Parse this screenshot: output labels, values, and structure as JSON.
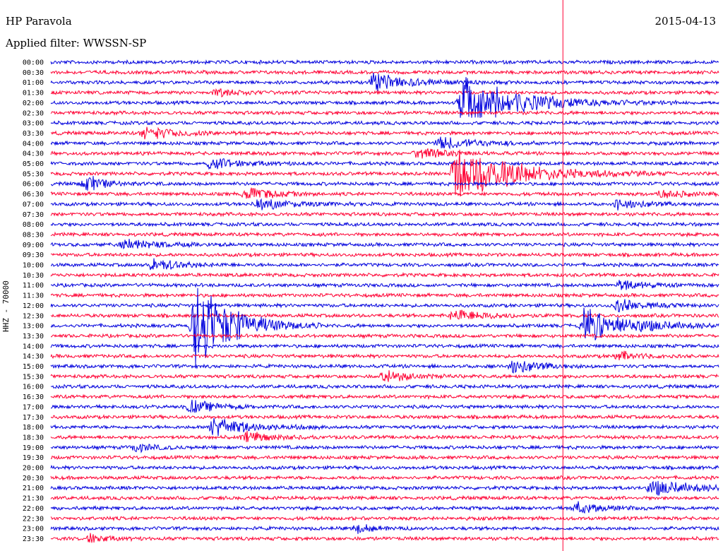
{
  "header": {
    "station": "HP Paravola",
    "date": "2015-04-13",
    "filter": "Applied filter: WWSSN-SP"
  },
  "colors": {
    "odd": "#0000dd",
    "even": "#ff0033",
    "marker": "#ff0033"
  },
  "chart_data": {
    "type": "line",
    "title": "HP Paravola",
    "subtitle": "Applied filter: WWSSN-SP",
    "ylabel": "HHZ - 70000",
    "rows": [
      "00:00",
      "00:30",
      "01:00",
      "01:30",
      "02:00",
      "02:30",
      "03:00",
      "03:30",
      "04:00",
      "04:30",
      "05:00",
      "05:30",
      "06:00",
      "06:30",
      "07:00",
      "07:30",
      "08:00",
      "08:30",
      "09:00",
      "09:30",
      "10:00",
      "10:30",
      "11:00",
      "11:30",
      "12:00",
      "12:30",
      "13:00",
      "13:30",
      "14:00",
      "14:30",
      "15:00",
      "15:30",
      "16:00",
      "16:30",
      "17:00",
      "17:30",
      "18:00",
      "18:30",
      "19:00",
      "19:30",
      "20:00",
      "20:30",
      "21:00",
      "21:30",
      "22:00",
      "22:30",
      "23:00",
      "23:30"
    ],
    "events": [
      {
        "row": 2,
        "minute": 14.5,
        "amp": 14,
        "dur": 1.5
      },
      {
        "row": 3,
        "minute": 7.5,
        "amp": 6,
        "dur": 1.0
      },
      {
        "row": 4,
        "minute": 18.5,
        "amp": 40,
        "dur": 2.5
      },
      {
        "row": 7,
        "minute": 4.2,
        "amp": 10,
        "dur": 1.5
      },
      {
        "row": 8,
        "minute": 17.5,
        "amp": 10,
        "dur": 1.5
      },
      {
        "row": 9,
        "minute": 16.5,
        "amp": 9,
        "dur": 1.0
      },
      {
        "row": 10,
        "minute": 7.2,
        "amp": 9,
        "dur": 1.2
      },
      {
        "row": 11,
        "minute": 18.2,
        "amp": 45,
        "dur": 2.5
      },
      {
        "row": 12,
        "minute": 1.6,
        "amp": 14,
        "dur": 0.8
      },
      {
        "row": 13,
        "minute": 8.8,
        "amp": 12,
        "dur": 1.0
      },
      {
        "row": 13,
        "minute": 27.5,
        "amp": 8,
        "dur": 0.8
      },
      {
        "row": 14,
        "minute": 9.3,
        "amp": 9,
        "dur": 1.5
      },
      {
        "row": 14,
        "minute": 25.5,
        "amp": 10,
        "dur": 1.0
      },
      {
        "row": 18,
        "minute": 3.3,
        "amp": 8,
        "dur": 1.5
      },
      {
        "row": 20,
        "minute": 4.6,
        "amp": 12,
        "dur": 1.0
      },
      {
        "row": 22,
        "minute": 25.6,
        "amp": 9,
        "dur": 1.0
      },
      {
        "row": 24,
        "minute": 25.5,
        "amp": 10,
        "dur": 1.0
      },
      {
        "row": 25,
        "minute": 18.1,
        "amp": 9,
        "dur": 1.5
      },
      {
        "row": 26,
        "minute": 6.5,
        "amp": 80,
        "dur": 1.5
      },
      {
        "row": 26,
        "minute": 24.0,
        "amp": 30,
        "dur": 2.0
      },
      {
        "row": 29,
        "minute": 25.5,
        "amp": 8,
        "dur": 0.8
      },
      {
        "row": 30,
        "minute": 20.8,
        "amp": 14,
        "dur": 1.0
      },
      {
        "row": 31,
        "minute": 15.0,
        "amp": 10,
        "dur": 1.0
      },
      {
        "row": 34,
        "minute": 6.3,
        "amp": 11,
        "dur": 1.0
      },
      {
        "row": 36,
        "minute": 7.3,
        "amp": 16,
        "dur": 1.5
      },
      {
        "row": 37,
        "minute": 8.8,
        "amp": 9,
        "dur": 1.0
      },
      {
        "row": 38,
        "minute": 3.8,
        "amp": 7,
        "dur": 0.8
      },
      {
        "row": 42,
        "minute": 27.0,
        "amp": 12,
        "dur": 2.0
      },
      {
        "row": 44,
        "minute": 23.6,
        "amp": 10,
        "dur": 1.0
      },
      {
        "row": 46,
        "minute": 13.8,
        "amp": 8,
        "dur": 0.6
      },
      {
        "row": 47,
        "minute": 1.8,
        "amp": 8,
        "dur": 0.6
      }
    ],
    "marker_minute": 23.0
  }
}
